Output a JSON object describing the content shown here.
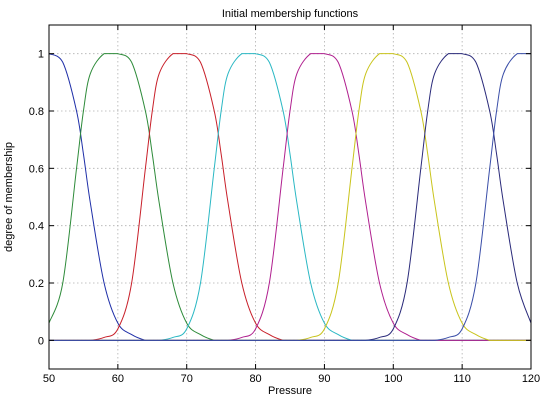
{
  "chart_data": {
    "type": "line",
    "title": "Initial membership functions",
    "xlabel": "Pressure",
    "ylabel": "degree of membership",
    "xlim": [
      50,
      120
    ],
    "ylim": [
      -0.1,
      1.1
    ],
    "xticks": [
      50,
      60,
      70,
      80,
      90,
      100,
      110,
      120
    ],
    "yticks": [
      0,
      0.2,
      0.4,
      0.6,
      0.8,
      1
    ],
    "ytick_labels": [
      "0",
      "0.2",
      "0.4",
      "0.6",
      "0.8",
      "1"
    ],
    "grid": true,
    "x": [
      50,
      52,
      54,
      55,
      56,
      58,
      60,
      62,
      64,
      65,
      66,
      68,
      70,
      72,
      74,
      75,
      76,
      78,
      80,
      82,
      84,
      85,
      86,
      88,
      90,
      92,
      94,
      95,
      96,
      98,
      100,
      102,
      104,
      105,
      106,
      108,
      110,
      112,
      114,
      115,
      116,
      118,
      120
    ],
    "series": [
      {
        "color": "#1f2fa8",
        "values": [
          1.0,
          0.97,
          0.8,
          0.65,
          0.48,
          0.2,
          0.06,
          0.02,
          0.0,
          0.0,
          0.0,
          0.0,
          0.0,
          0.0,
          0.0,
          0.0,
          0.0,
          0.0,
          0.0,
          0.0,
          0.0,
          0.0,
          0.0,
          0.0,
          0.0,
          0.0,
          0.0,
          0.0,
          0.0,
          0.0,
          0.0,
          0.0,
          0.0,
          0.0,
          0.0,
          0.0,
          0.0,
          0.0,
          0.0,
          0.0,
          0.0,
          0.0,
          0.0
        ]
      },
      {
        "color": "#2e8b3a",
        "values": [
          0.06,
          0.2,
          0.6,
          0.8,
          0.93,
          1.0,
          1.0,
          0.97,
          0.8,
          0.65,
          0.48,
          0.2,
          0.06,
          0.02,
          0.0,
          0.0,
          0.0,
          0.0,
          0.0,
          0.0,
          0.0,
          0.0,
          0.0,
          0.0,
          0.0,
          0.0,
          0.0,
          0.0,
          0.0,
          0.0,
          0.0,
          0.0,
          0.0,
          0.0,
          0.0,
          0.0,
          0.0,
          0.0,
          0.0,
          0.0,
          0.0,
          0.0,
          0.0
        ]
      },
      {
        "color": "#c8202a",
        "values": [
          0.0,
          0.0,
          0.0,
          0.0,
          0.0,
          0.01,
          0.04,
          0.2,
          0.6,
          0.8,
          0.93,
          1.0,
          1.0,
          0.97,
          0.8,
          0.65,
          0.48,
          0.2,
          0.06,
          0.02,
          0.0,
          0.0,
          0.0,
          0.0,
          0.0,
          0.0,
          0.0,
          0.0,
          0.0,
          0.0,
          0.0,
          0.0,
          0.0,
          0.0,
          0.0,
          0.0,
          0.0,
          0.0,
          0.0,
          0.0,
          0.0,
          0.0,
          0.0
        ]
      },
      {
        "color": "#2bb8c4",
        "values": [
          0.0,
          0.0,
          0.0,
          0.0,
          0.0,
          0.0,
          0.0,
          0.0,
          0.0,
          0.0,
          0.0,
          0.01,
          0.04,
          0.2,
          0.6,
          0.8,
          0.93,
          1.0,
          1.0,
          0.97,
          0.8,
          0.65,
          0.48,
          0.2,
          0.06,
          0.02,
          0.0,
          0.0,
          0.0,
          0.0,
          0.0,
          0.0,
          0.0,
          0.0,
          0.0,
          0.0,
          0.0,
          0.0,
          0.0,
          0.0,
          0.0,
          0.0,
          0.0
        ]
      },
      {
        "color": "#b0208f",
        "values": [
          0.0,
          0.0,
          0.0,
          0.0,
          0.0,
          0.0,
          0.0,
          0.0,
          0.0,
          0.0,
          0.0,
          0.0,
          0.0,
          0.0,
          0.0,
          0.0,
          0.0,
          0.01,
          0.04,
          0.2,
          0.6,
          0.8,
          0.93,
          1.0,
          1.0,
          0.97,
          0.8,
          0.65,
          0.48,
          0.2,
          0.06,
          0.02,
          0.0,
          0.0,
          0.0,
          0.0,
          0.0,
          0.0,
          0.0,
          0.0,
          0.0,
          0.0,
          0.0
        ]
      },
      {
        "color": "#c9c41c",
        "values": [
          0.0,
          0.0,
          0.0,
          0.0,
          0.0,
          0.0,
          0.0,
          0.0,
          0.0,
          0.0,
          0.0,
          0.0,
          0.0,
          0.0,
          0.0,
          0.0,
          0.0,
          0.0,
          0.0,
          0.0,
          0.0,
          0.0,
          0.0,
          0.01,
          0.04,
          0.2,
          0.6,
          0.8,
          0.93,
          1.0,
          1.0,
          0.97,
          0.8,
          0.65,
          0.48,
          0.2,
          0.06,
          0.02,
          0.0,
          0.0,
          0.0,
          0.0,
          0.0
        ]
      },
      {
        "color": "#2a2a7a",
        "values": [
          0.0,
          0.0,
          0.0,
          0.0,
          0.0,
          0.0,
          0.0,
          0.0,
          0.0,
          0.0,
          0.0,
          0.0,
          0.0,
          0.0,
          0.0,
          0.0,
          0.0,
          0.0,
          0.0,
          0.0,
          0.0,
          0.0,
          0.0,
          0.0,
          0.0,
          0.0,
          0.0,
          0.0,
          0.0,
          0.01,
          0.04,
          0.2,
          0.6,
          0.8,
          0.93,
          1.0,
          1.0,
          0.97,
          0.8,
          0.65,
          0.48,
          0.2,
          0.06
        ]
      },
      {
        "color": "#3a4ea8",
        "values": [
          0.0,
          0.0,
          0.0,
          0.0,
          0.0,
          0.0,
          0.0,
          0.0,
          0.0,
          0.0,
          0.0,
          0.0,
          0.0,
          0.0,
          0.0,
          0.0,
          0.0,
          0.0,
          0.0,
          0.0,
          0.0,
          0.0,
          0.0,
          0.0,
          0.0,
          0.0,
          0.0,
          0.0,
          0.0,
          0.0,
          0.0,
          0.0,
          0.0,
          0.0,
          0.0,
          0.01,
          0.04,
          0.2,
          0.6,
          0.8,
          0.93,
          1.0,
          1.0
        ]
      }
    ]
  }
}
